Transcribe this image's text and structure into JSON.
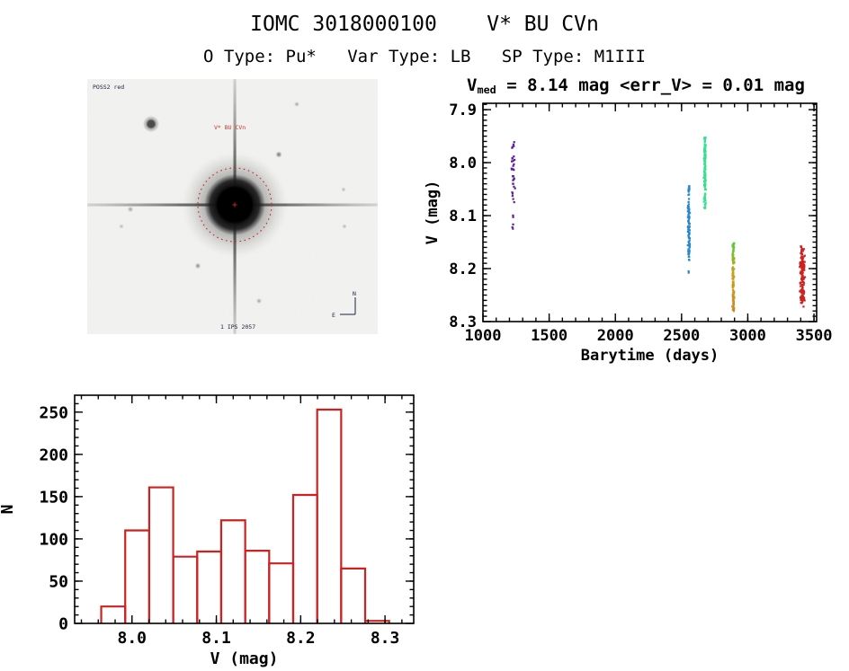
{
  "header": {
    "title": "IOMC 3018000100    V* BU CVn",
    "subtitle": "O Type: Pu*   Var Type: LB   SP Type: M1III"
  },
  "finding_chart": {
    "survey_label": "POSS2 red",
    "star_label": "V* BU CVn",
    "caption": "1 IPS 2057",
    "compass_north": "N",
    "compass_east": "E",
    "marker_color": "#CC2222"
  },
  "chart_data": [
    {
      "id": "lightcurve",
      "type": "scatter",
      "title": {
        "var": "V",
        "sub": "med",
        "rest": " = 8.14 mag <err_V> = 0.01 mag"
      },
      "xlabel": "Barytime (days)",
      "ylabel": "V (mag)",
      "xlim": [
        1000,
        3520
      ],
      "ylim_bottom_top": [
        8.3,
        7.888
      ],
      "xticks": [
        1000,
        1500,
        2000,
        2500,
        3000,
        3500
      ],
      "x_minor_step": 100,
      "yticks": [
        7.9,
        8.0,
        8.1,
        8.2,
        8.3
      ],
      "y_minor_step": 0.01,
      "axis_color": "#000000",
      "clusters": [
        {
          "name": "epoch-1",
          "color": "#5A1FA0",
          "x": 1228,
          "x_spread": 16,
          "segments": [
            {
              "v0": 7.955,
              "v1": 7.978,
              "n": 5
            },
            {
              "v0": 7.988,
              "v1": 8.075,
              "n": 27
            },
            {
              "v0": 8.095,
              "v1": 8.105,
              "n": 2
            },
            {
              "v0": 8.115,
              "v1": 8.125,
              "n": 3
            }
          ]
        },
        {
          "name": "epoch-2",
          "color": "#2B87C8",
          "x": 2555,
          "x_spread": 9,
          "segments": [
            {
              "v0": 8.044,
              "v1": 8.072,
              "n": 12
            },
            {
              "v0": 8.072,
              "v1": 8.185,
              "n": 90
            },
            {
              "v0": 8.202,
              "v1": 8.208,
              "n": 2
            }
          ]
        },
        {
          "name": "epoch-3",
          "color": "#3ADE8F",
          "x": 2676,
          "x_spread": 9,
          "segments": [
            {
              "v0": 7.951,
              "v1": 8.052,
              "n": 85
            },
            {
              "v0": 8.052,
              "v1": 8.09,
              "n": 20
            }
          ]
        },
        {
          "name": "epoch-4",
          "colors": [
            "#55CC33",
            "#C9A21E",
            "#CC8A1E"
          ],
          "x": 2890,
          "x_spread": 9,
          "segments": [
            {
              "v0": 8.152,
              "v1": 8.28,
              "n": 115
            }
          ]
        },
        {
          "name": "epoch-5",
          "color": "#CC2222",
          "x": 3413,
          "x_spread": 22,
          "segments": [
            {
              "v0": 8.157,
              "v1": 8.2,
              "n": 40
            },
            {
              "v0": 8.185,
              "v1": 8.26,
              "n": 95
            },
            {
              "v0": 8.26,
              "v1": 8.272,
              "n": 6
            }
          ]
        }
      ]
    },
    {
      "id": "histogram",
      "type": "bar",
      "xlabel": "V (mag)",
      "ylabel": "N",
      "bar_color": "#CC2222",
      "axis_color": "#000000",
      "bin_start": 7.9635,
      "bin_width": 0.02845,
      "counts": [
        20,
        110,
        161,
        79,
        85,
        122,
        86,
        71,
        152,
        253,
        65,
        3
      ],
      "xlim": [
        7.932,
        8.334
      ],
      "ylim": [
        0,
        270
      ],
      "xticks": [
        8.0,
        8.1,
        8.2,
        8.3
      ],
      "x_minor_step": 0.02,
      "yticks": [
        0,
        50,
        100,
        150,
        200,
        250
      ],
      "y_minor_step": 10
    }
  ]
}
